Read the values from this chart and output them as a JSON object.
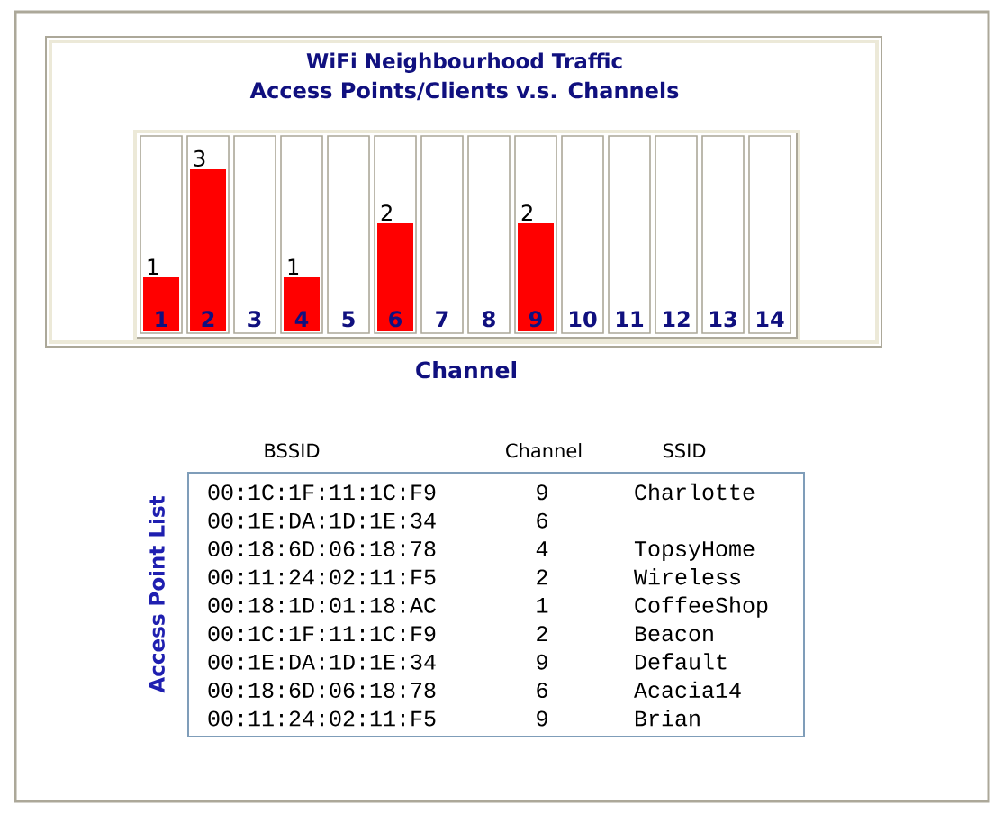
{
  "chart_data": [
    {
      "type": "bar",
      "title": "WiFi Neighbourhood Traffic",
      "subtitle": "Access Points/Clients v.s. Channels",
      "xlabel": "Channel",
      "categories": [
        "1",
        "2",
        "3",
        "4",
        "5",
        "6",
        "7",
        "8",
        "9",
        "10",
        "11",
        "12",
        "13",
        "14"
      ],
      "values": [
        1,
        3,
        0,
        1,
        0,
        2,
        0,
        0,
        2,
        0,
        0,
        0,
        0,
        0
      ],
      "color": "#ff0000",
      "value_labels": [
        "1",
        "3",
        null,
        "1",
        null,
        "2",
        null,
        null,
        "2",
        null,
        null,
        null,
        null,
        null
      ],
      "ylim": [
        0,
        3.6
      ],
      "tick_labels": "x"
    },
    {
      "type": "other",
      "ylabel": "Access Point List",
      "categories": [
        "BSSID",
        "Channel",
        "SSID"
      ],
      "annotations": [
        "00:1C:1F:11:1C:F9",
        "9",
        "Charlotte",
        "00:1E:DA:1D:1E:34",
        "6",
        null,
        "00:18:6D:06:18:78",
        "4",
        "TopsyHome",
        "00:11:24:02:11:F5",
        "2",
        "Wireless",
        "00:18:1D:01:18:AC",
        "1",
        "CoffeeShop",
        "00:1C:1F:11:1C:F9",
        "2",
        "Beacon",
        "00:1E:DA:1D:1E:34",
        "9",
        "Default",
        "00:18:6D:06:18:78",
        "6",
        "Acacia14",
        "00:11:24:02:11:F5",
        "9",
        "Brian"
      ]
    }
  ]
}
